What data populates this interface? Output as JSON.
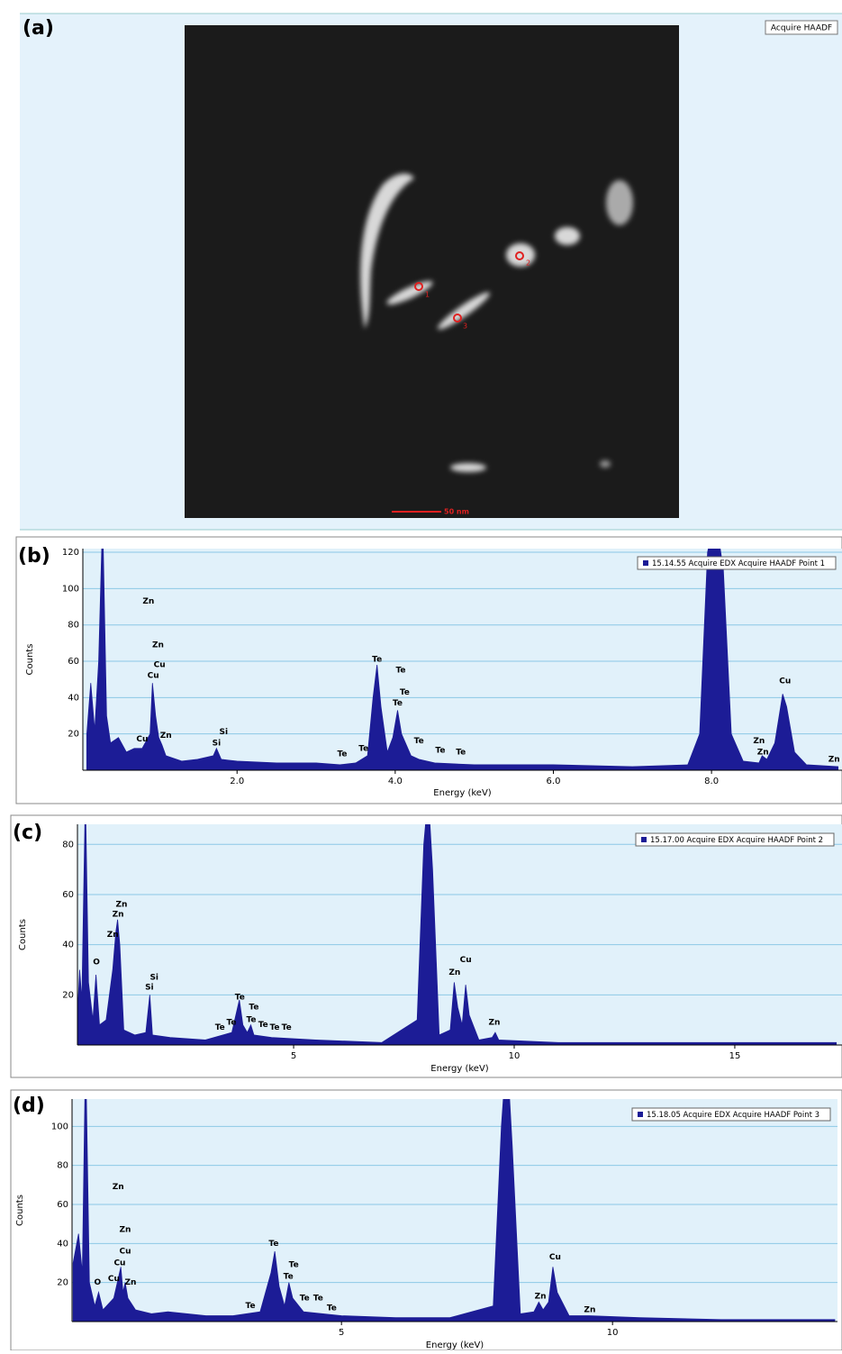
{
  "image_panel": {
    "label": "(a)",
    "button": "Acquire HAADF",
    "scale_bar": "50 nm",
    "points": [
      "1",
      "2",
      "3"
    ]
  },
  "chart_data": [
    {
      "type": "area",
      "panel_label": "(b)",
      "x_label": "Energy (keV)",
      "y_label": "Counts",
      "xlim": [
        0.05,
        9.65
      ],
      "ylim": [
        0,
        122
      ],
      "xticks": [
        {
          "value": 2,
          "label": "2.0"
        },
        {
          "value": 4,
          "label": "4.0"
        },
        {
          "value": 6,
          "label": "6.0"
        },
        {
          "value": 8,
          "label": "8.0"
        }
      ],
      "yticks": [
        20,
        40,
        60,
        80,
        100,
        120
      ],
      "grid": true,
      "x": [
        0.1,
        0.15,
        0.2,
        0.25,
        0.3,
        0.35,
        0.4,
        0.5,
        0.6,
        0.7,
        0.8,
        0.9,
        0.93,
        0.97,
        1.01,
        1.05,
        1.1,
        1.3,
        1.5,
        1.7,
        1.74,
        1.8,
        2.0,
        2.5,
        3.0,
        3.3,
        3.5,
        3.65,
        3.72,
        3.77,
        3.82,
        3.9,
        3.97,
        4.03,
        4.08,
        4.2,
        4.3,
        4.5,
        5.0,
        6.0,
        7.0,
        7.7,
        7.85,
        7.95,
        8.05,
        8.15,
        8.25,
        8.4,
        8.6,
        8.64,
        8.7,
        8.8,
        8.9,
        8.95,
        9.05,
        9.2,
        9.6
      ],
      "series": [
        {
          "name": "15.14.55 Acquire EDX Acquire HAADF Point 1",
          "color": "#1c1c96",
          "values": [
            20,
            48,
            22,
            60,
            140,
            30,
            15,
            18,
            10,
            12,
            12,
            20,
            48,
            30,
            18,
            14,
            8,
            5,
            6,
            8,
            12,
            6,
            5,
            4,
            4,
            3,
            4,
            8,
            40,
            58,
            35,
            10,
            18,
            33,
            20,
            8,
            6,
            4,
            3,
            3,
            2,
            3,
            20,
            120,
            140,
            110,
            20,
            5,
            4,
            8,
            6,
            15,
            42,
            35,
            10,
            3,
            2
          ]
        }
      ],
      "annotations": [
        {
          "text": "Zn",
          "x": 0.88,
          "y": 93
        },
        {
          "text": "Zn",
          "x": 1.0,
          "y": 69
        },
        {
          "text": "Cu",
          "x": 1.02,
          "y": 58
        },
        {
          "text": "Cu",
          "x": 0.94,
          "y": 52
        },
        {
          "text": "Zn",
          "x": 1.1,
          "y": 19
        },
        {
          "text": "Cu",
          "x": 0.8,
          "y": 17
        },
        {
          "text": "Si",
          "x": 1.83,
          "y": 21
        },
        {
          "text": "Si",
          "x": 1.74,
          "y": 15
        },
        {
          "text": "Te",
          "x": 3.33,
          "y": 9
        },
        {
          "text": "Te",
          "x": 3.6,
          "y": 12
        },
        {
          "text": "Te",
          "x": 3.77,
          "y": 61
        },
        {
          "text": "Te",
          "x": 4.07,
          "y": 55
        },
        {
          "text": "Te",
          "x": 4.12,
          "y": 43
        },
        {
          "text": "Te",
          "x": 4.03,
          "y": 37
        },
        {
          "text": "Te",
          "x": 4.3,
          "y": 16
        },
        {
          "text": "Te",
          "x": 4.57,
          "y": 11
        },
        {
          "text": "Te",
          "x": 4.83,
          "y": 10
        },
        {
          "text": "Zn",
          "x": 8.6,
          "y": 16
        },
        {
          "text": "Zn",
          "x": 8.65,
          "y": 10
        },
        {
          "text": "Cu",
          "x": 8.93,
          "y": 49
        },
        {
          "text": "Zn",
          "x": 9.55,
          "y": 6
        }
      ]
    },
    {
      "type": "area",
      "panel_label": "(c)",
      "x_label": "Energy (keV)",
      "y_label": "Counts",
      "xlim": [
        0.1,
        17.43
      ],
      "ylim": [
        0,
        88
      ],
      "xticks": [
        5,
        10,
        15
      ],
      "yticks": [
        20,
        40,
        60,
        80
      ],
      "grid": true,
      "x": [
        0.1,
        0.15,
        0.2,
        0.28,
        0.35,
        0.45,
        0.52,
        0.6,
        0.75,
        0.9,
        0.97,
        1.01,
        1.06,
        1.15,
        1.4,
        1.65,
        1.74,
        1.8,
        2.2,
        3.0,
        3.6,
        3.77,
        3.85,
        3.95,
        4.03,
        4.1,
        4.5,
        5.5,
        7.0,
        7.8,
        7.95,
        8.05,
        8.15,
        8.3,
        8.55,
        8.64,
        8.72,
        8.82,
        8.9,
        8.98,
        9.2,
        9.5,
        9.57,
        9.65,
        11,
        13,
        15,
        17.3
      ],
      "series": [
        {
          "name": "15.17.00 Acquire EDX Acquire HAADF Point 2",
          "color": "#1c1c96",
          "values": [
            12,
            30,
            18,
            100,
            25,
            10,
            28,
            8,
            10,
            30,
            45,
            50,
            40,
            6,
            4,
            5,
            20,
            4,
            3,
            2,
            5,
            18,
            8,
            5,
            8,
            4,
            3,
            2,
            1,
            10,
            80,
            100,
            70,
            4,
            6,
            25,
            15,
            8,
            24,
            12,
            2,
            3,
            5,
            2,
            1,
            1,
            1,
            1
          ]
        }
      ],
      "annotations": [
        {
          "text": "O",
          "x": 0.53,
          "y": 33
        },
        {
          "text": "Zn",
          "x": 1.1,
          "y": 56
        },
        {
          "text": "Zn",
          "x": 1.02,
          "y": 52
        },
        {
          "text": "Zn",
          "x": 0.9,
          "y": 44
        },
        {
          "text": "Si",
          "x": 1.84,
          "y": 27
        },
        {
          "text": "Si",
          "x": 1.73,
          "y": 23
        },
        {
          "text": "Te",
          "x": 3.78,
          "y": 19
        },
        {
          "text": "Te",
          "x": 4.1,
          "y": 15
        },
        {
          "text": "Te",
          "x": 4.04,
          "y": 10
        },
        {
          "text": "Te",
          "x": 3.59,
          "y": 9
        },
        {
          "text": "Te",
          "x": 3.33,
          "y": 7
        },
        {
          "text": "Te",
          "x": 4.31,
          "y": 8
        },
        {
          "text": "Te",
          "x": 4.57,
          "y": 7
        },
        {
          "text": "Te",
          "x": 4.84,
          "y": 7
        },
        {
          "text": "Zn",
          "x": 8.65,
          "y": 29
        },
        {
          "text": "Cu",
          "x": 8.9,
          "y": 34
        },
        {
          "text": "Zn",
          "x": 9.55,
          "y": 9
        }
      ]
    },
    {
      "type": "area",
      "panel_label": "(d)",
      "x_label": "Energy (keV)",
      "y_label": "Counts",
      "xlim": [
        0.03,
        14.15
      ],
      "ylim": [
        0,
        114
      ],
      "xticks": [
        5,
        10
      ],
      "yticks": [
        20,
        40,
        60,
        80,
        100
      ],
      "grid": true,
      "x": [
        0.05,
        0.15,
        0.22,
        0.28,
        0.35,
        0.45,
        0.52,
        0.6,
        0.8,
        0.93,
        0.97,
        1.01,
        1.06,
        1.2,
        1.5,
        1.8,
        2.5,
        3.0,
        3.5,
        3.7,
        3.77,
        3.85,
        3.95,
        4.03,
        4.1,
        4.3,
        5.0,
        6.0,
        7.0,
        7.8,
        7.95,
        8.05,
        8.15,
        8.3,
        8.55,
        8.64,
        8.72,
        8.82,
        8.9,
        8.98,
        9.2,
        9.57,
        10.5,
        12,
        14.1
      ],
      "series": [
        {
          "name": "15.18.05 Acquire EDX Acquire HAADF Point 3",
          "color": "#1c1c96",
          "values": [
            30,
            45,
            25,
            140,
            20,
            8,
            15,
            6,
            12,
            28,
            15,
            20,
            12,
            6,
            4,
            5,
            3,
            3,
            5,
            25,
            36,
            18,
            8,
            20,
            12,
            5,
            3,
            2,
            2,
            8,
            100,
            140,
            90,
            4,
            5,
            10,
            6,
            10,
            28,
            15,
            3,
            3,
            2,
            1,
            1
          ]
        }
      ],
      "annotations": [
        {
          "text": "Zn",
          "x": 0.88,
          "y": 69
        },
        {
          "text": "Zn",
          "x": 1.01,
          "y": 47
        },
        {
          "text": "Cu",
          "x": 1.01,
          "y": 36
        },
        {
          "text": "Cu",
          "x": 0.91,
          "y": 30
        },
        {
          "text": "Cu",
          "x": 0.8,
          "y": 22
        },
        {
          "text": "Zn",
          "x": 1.11,
          "y": 20
        },
        {
          "text": "O",
          "x": 0.5,
          "y": 20
        },
        {
          "text": "Te",
          "x": 3.75,
          "y": 40
        },
        {
          "text": "Te",
          "x": 4.12,
          "y": 29
        },
        {
          "text": "Te",
          "x": 4.02,
          "y": 23
        },
        {
          "text": "Te",
          "x": 3.32,
          "y": 8
        },
        {
          "text": "Te",
          "x": 4.32,
          "y": 12
        },
        {
          "text": "Te",
          "x": 4.57,
          "y": 12
        },
        {
          "text": "Te",
          "x": 4.82,
          "y": 7
        },
        {
          "text": "Zn",
          "x": 8.67,
          "y": 13
        },
        {
          "text": "Cu",
          "x": 8.94,
          "y": 33
        },
        {
          "text": "Zn",
          "x": 9.58,
          "y": 6
        }
      ]
    }
  ]
}
